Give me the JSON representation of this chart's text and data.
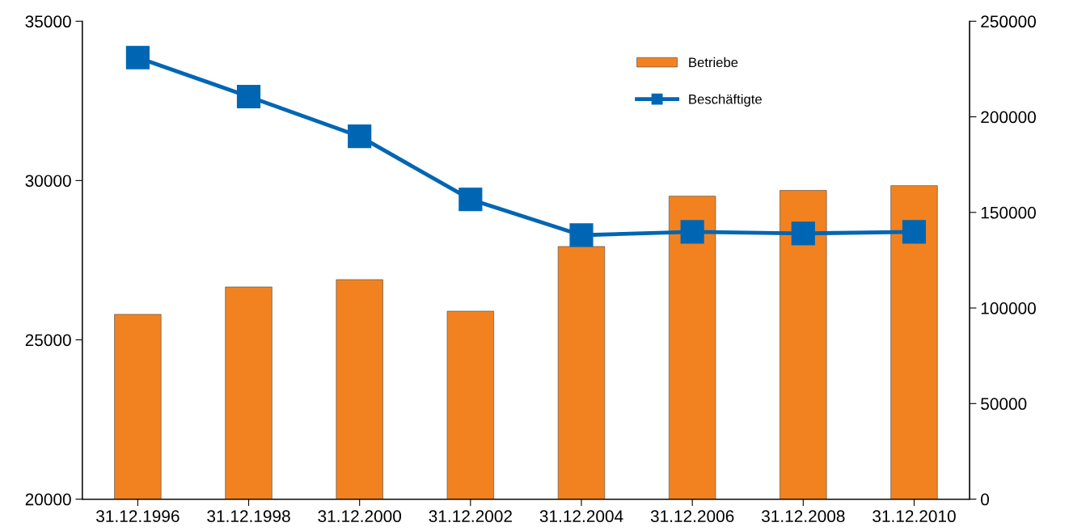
{
  "chart_data": {
    "type": "bar",
    "categories": [
      "31.12.1996",
      "31.12.1998",
      "31.12.2000",
      "31.12.2002",
      "31.12.2004",
      "31.12.2006",
      "31.12.2008",
      "31.12.2010"
    ],
    "series": [
      {
        "name": "Betriebe",
        "color": "#f28220",
        "values": [
          25800,
          26660,
          26890,
          25900,
          27930,
          29510,
          29690,
          29840
        ]
      },
      {
        "name": "Beschäftigte",
        "type": "line",
        "axis": "y2",
        "color": "#0066b3",
        "marker": "square",
        "line_style": "solid",
        "values": [
          231000,
          210600,
          189800,
          156800,
          138100,
          139800,
          139000,
          139800
        ]
      }
    ],
    "ylim": [
      20000,
      35000
    ],
    "yticks": [
      20000,
      25000,
      30000,
      35000
    ],
    "y2lim": [
      0,
      250000
    ],
    "y2ticks": [
      0,
      50000,
      100000,
      150000,
      200000,
      250000
    ],
    "grid": false,
    "legend": "top right"
  }
}
